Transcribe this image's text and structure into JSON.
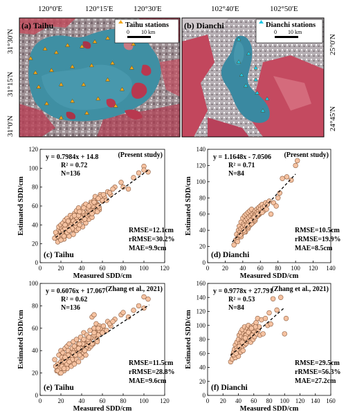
{
  "maps": [
    {
      "panel_label": "(a) Taihu",
      "legend": "Taihu stations",
      "scale_0": "0",
      "scale_1": "10 km",
      "top_ticks": [
        "120°0'E",
        "120°15'E",
        "120°30'E"
      ],
      "left_ticks": [
        "31°30'N",
        "31°15'N",
        "31°0'N"
      ],
      "station_color": "#f2a81d",
      "stations": [
        [
          0.07,
          0.34
        ],
        [
          0.16,
          0.26
        ],
        [
          0.23,
          0.29
        ],
        [
          0.3,
          0.23
        ],
        [
          0.39,
          0.24
        ],
        [
          0.47,
          0.2
        ],
        [
          0.55,
          0.17
        ],
        [
          0.65,
          0.15
        ],
        [
          0.71,
          0.22
        ],
        [
          0.1,
          0.46
        ],
        [
          0.2,
          0.44
        ],
        [
          0.33,
          0.41
        ],
        [
          0.45,
          0.4
        ],
        [
          0.58,
          0.38
        ],
        [
          0.7,
          0.42
        ],
        [
          0.12,
          0.58
        ],
        [
          0.26,
          0.56
        ],
        [
          0.4,
          0.56
        ],
        [
          0.55,
          0.52
        ],
        [
          0.64,
          0.6
        ],
        [
          0.17,
          0.72
        ],
        [
          0.33,
          0.7
        ],
        [
          0.49,
          0.68
        ],
        [
          0.6,
          0.74
        ],
        [
          0.26,
          0.84
        ],
        [
          0.42,
          0.8
        ]
      ]
    },
    {
      "panel_label": "(b) Dianchi",
      "legend": "Dianchi stations",
      "scale_0": "0",
      "scale_1": "10 km",
      "top_ticks": [
        "102°40'E",
        "102°50'E"
      ],
      "right_ticks": [
        "25°0'N",
        "24°45'N"
      ],
      "station_color": "#1ec7e6",
      "stations": [
        [
          0.4,
          0.18
        ],
        [
          0.47,
          0.3
        ],
        [
          0.4,
          0.37
        ],
        [
          0.52,
          0.42
        ],
        [
          0.42,
          0.48
        ],
        [
          0.52,
          0.52
        ],
        [
          0.45,
          0.57
        ],
        [
          0.53,
          0.63
        ],
        [
          0.6,
          0.68
        ],
        [
          0.57,
          0.78
        ]
      ]
    }
  ],
  "chart_data": [
    {
      "type": "scatter",
      "panel_label": "(c) Taihu",
      "source": "(Present study)",
      "equation": "y = 0.7984x + 14.8",
      "r2": "R² = 0.72",
      "n": "N=136",
      "rmse": "RMSE=12.1cm",
      "rrmse": "rRMSE=30.2%",
      "mae": "MAE=9.9cm",
      "xlabel": "Measured SDD/cm",
      "ylabel": "Estimated SDD/cm",
      "xlim": [
        0,
        120
      ],
      "ylim": [
        0,
        120
      ],
      "xticks": [
        "0",
        "20",
        "40",
        "60",
        "80",
        "100",
        "120"
      ],
      "yticks": [
        "0",
        "20",
        "40",
        "60",
        "80",
        "100",
        "120"
      ],
      "fit": {
        "slope": 0.7984,
        "intercept": 14.8,
        "x_range": [
          15,
          105
        ]
      },
      "x": [
        14,
        16,
        17,
        18,
        18,
        19,
        20,
        20,
        21,
        21,
        22,
        22,
        23,
        23,
        24,
        24,
        25,
        25,
        26,
        26,
        27,
        27,
        28,
        28,
        29,
        30,
        30,
        31,
        31,
        32,
        32,
        33,
        34,
        34,
        35,
        35,
        36,
        36,
        37,
        37,
        38,
        38,
        39,
        40,
        40,
        41,
        41,
        42,
        42,
        43,
        44,
        44,
        45,
        46,
        47,
        48,
        48,
        49,
        50,
        50,
        51,
        52,
        52,
        53,
        54,
        55,
        56,
        57,
        58,
        60,
        62,
        65,
        68,
        72,
        78,
        80,
        85,
        90,
        95,
        100,
        100,
        104,
        15,
        19,
        22,
        25,
        28,
        30,
        33,
        36,
        39,
        42,
        45,
        48,
        51,
        54,
        57,
        60,
        17,
        21,
        24,
        27,
        29,
        32,
        35,
        38,
        41,
        44,
        47,
        50,
        53,
        56,
        20,
        23,
        26,
        31,
        34,
        37,
        43,
        46,
        49,
        52,
        55,
        58,
        61,
        64,
        67,
        70,
        24,
        28,
        33,
        38,
        42,
        47,
        52,
        56
      ],
      "y": [
        26,
        30,
        22,
        35,
        38,
        28,
        33,
        40,
        27,
        36,
        31,
        42,
        25,
        38,
        34,
        45,
        29,
        41,
        36,
        47,
        32,
        39,
        44,
        28,
        50,
        37,
        42,
        35,
        48,
        40,
        30,
        52,
        38,
        45,
        34,
        55,
        42,
        48,
        36,
        58,
        44,
        40,
        50,
        46,
        52,
        38,
        56,
        44,
        60,
        48,
        42,
        62,
        50,
        54,
        46,
        58,
        52,
        64,
        48,
        56,
        60,
        66,
        54,
        70,
        58,
        62,
        68,
        56,
        72,
        65,
        70,
        75,
        72,
        80,
        85,
        80,
        78,
        90,
        95,
        102,
        98,
        96,
        32,
        26,
        34,
        38,
        42,
        40,
        46,
        44,
        48,
        52,
        50,
        56,
        60,
        62,
        58,
        66,
        28,
        30,
        36,
        44,
        38,
        44,
        48,
        40,
        54,
        48,
        56,
        52,
        64,
        60,
        24,
        28,
        32,
        36,
        42,
        50,
        46,
        58,
        62,
        64,
        54,
        70,
        72,
        66,
        74,
        78,
        40,
        34,
        50,
        54,
        58,
        60,
        64,
        68
      ]
    },
    {
      "type": "scatter",
      "panel_label": "(d) Dianchi",
      "source": "(Present study)",
      "equation": "y = 1.1648x - 7.0506",
      "r2": "R² = 0.71",
      "n": "N=84",
      "rmse": "RMSE=10.5cm",
      "rrmse": "rRMSE=19.9%",
      "mae": "MAE=8.5cm",
      "xlabel": "Measured SDD/cm",
      "ylabel": "Estimated SDD/cm",
      "xlim": [
        0,
        140
      ],
      "ylim": [
        0,
        140
      ],
      "xticks": [
        "0",
        "20",
        "40",
        "60",
        "80",
        "100",
        "120",
        "140"
      ],
      "yticks": [
        "0",
        "20",
        "40",
        "60",
        "80",
        "100",
        "120",
        "140"
      ],
      "fit": {
        "slope": 1.1648,
        "intercept": -7.0506,
        "x_range": [
          28,
          100
        ]
      },
      "x": [
        30,
        32,
        33,
        34,
        35,
        36,
        36,
        37,
        38,
        38,
        39,
        40,
        40,
        41,
        41,
        42,
        42,
        43,
        43,
        44,
        44,
        45,
        45,
        46,
        46,
        47,
        47,
        48,
        48,
        49,
        49,
        50,
        50,
        51,
        51,
        52,
        52,
        53,
        53,
        54,
        54,
        55,
        55,
        56,
        56,
        57,
        58,
        58,
        59,
        60,
        60,
        61,
        62,
        63,
        64,
        65,
        66,
        67,
        68,
        70,
        72,
        75,
        78,
        80,
        82,
        85,
        90,
        95,
        100,
        102,
        34,
        38,
        42,
        46,
        50,
        54,
        58,
        62,
        37,
        41,
        45,
        49,
        53,
        57
      ],
      "y": [
        22,
        28,
        35,
        30,
        40,
        33,
        45,
        38,
        42,
        50,
        36,
        44,
        55,
        40,
        48,
        46,
        58,
        38,
        52,
        44,
        60,
        48,
        54,
        42,
        62,
        50,
        56,
        46,
        64,
        52,
        58,
        48,
        66,
        54,
        60,
        50,
        56,
        62,
        58,
        52,
        64,
        60,
        56,
        66,
        62,
        58,
        64,
        68,
        60,
        70,
        66,
        62,
        72,
        68,
        64,
        70,
        74,
        66,
        72,
        76,
        60,
        74,
        70,
        80,
        86,
        104,
        106,
        102,
        120,
        126,
        26,
        32,
        38,
        44,
        48,
        54,
        60,
        62,
        34,
        40,
        46,
        52,
        56,
        60
      ]
    },
    {
      "type": "scatter",
      "panel_label": "(e) Taihu",
      "source": "(Zhang et al., 2021)",
      "equation": "y = 0.6076x + 17.067",
      "r2": "R² = 0.62",
      "n": "N=136",
      "rmse": "RMSE=11.5cm",
      "rrmse": "rRMSE=28.8%",
      "mae": "MAE=9.6cm",
      "xlabel": "Measured SDD/cm",
      "ylabel": "Estimated SDD/cm",
      "xlim": [
        0,
        120
      ],
      "ylim": [
        0,
        100
      ],
      "xticks": [
        "0",
        "20",
        "40",
        "60",
        "80",
        "100",
        "120"
      ],
      "yticks": [
        "0",
        "20",
        "40",
        "60",
        "80",
        "100"
      ],
      "fit": {
        "slope": 0.6076,
        "intercept": 17.067,
        "x_range": [
          15,
          105
        ]
      },
      "x": [
        14,
        16,
        17,
        18,
        18,
        19,
        20,
        20,
        21,
        21,
        22,
        22,
        23,
        23,
        24,
        24,
        25,
        25,
        26,
        26,
        27,
        27,
        28,
        28,
        29,
        30,
        30,
        31,
        31,
        32,
        32,
        33,
        34,
        34,
        35,
        35,
        36,
        36,
        37,
        37,
        38,
        38,
        39,
        40,
        40,
        41,
        41,
        42,
        42,
        43,
        44,
        44,
        45,
        46,
        47,
        48,
        48,
        49,
        50,
        50,
        51,
        52,
        52,
        53,
        54,
        55,
        56,
        57,
        58,
        60,
        62,
        65,
        68,
        72,
        78,
        80,
        85,
        90,
        95,
        100,
        100,
        104,
        15,
        19,
        22,
        25,
        28,
        30,
        33,
        36,
        39,
        42,
        45,
        48,
        51,
        54,
        57,
        60,
        17,
        21,
        24,
        27,
        29,
        32,
        35,
        38,
        41,
        44,
        47,
        50,
        53,
        56,
        20,
        23,
        26,
        31,
        34,
        37,
        43,
        46,
        49,
        52,
        55,
        58,
        61,
        64,
        67,
        70,
        24,
        28,
        33,
        38,
        42,
        47,
        52,
        56
      ],
      "y": [
        32,
        22,
        28,
        25,
        36,
        20,
        30,
        40,
        24,
        34,
        28,
        38,
        22,
        32,
        42,
        26,
        36,
        30,
        44,
        24,
        34,
        40,
        28,
        46,
        32,
        26,
        38,
        42,
        30,
        48,
        34,
        28,
        40,
        36,
        50,
        32,
        44,
        38,
        30,
        46,
        40,
        36,
        52,
        42,
        34,
        48,
        44,
        38,
        56,
        42,
        46,
        36,
        54,
        48,
        42,
        50,
        58,
        44,
        52,
        70,
        46,
        60,
        72,
        54,
        64,
        50,
        58,
        62,
        56,
        60,
        58,
        66,
        62,
        68,
        72,
        74,
        70,
        76,
        80,
        88,
        78,
        86,
        26,
        24,
        30,
        32,
        36,
        34,
        40,
        38,
        42,
        46,
        44,
        50,
        52,
        54,
        58,
        56,
        22,
        26,
        30,
        36,
        32,
        38,
        42,
        36,
        46,
        42,
        48,
        46,
        56,
        54,
        20,
        24,
        28,
        32,
        36,
        42,
        40,
        50,
        52,
        54,
        48,
        60,
        62,
        58,
        64,
        66,
        34,
        30,
        44,
        46,
        50,
        52,
        56,
        60
      ]
    },
    {
      "type": "scatter",
      "panel_label": "(f) Dianchi",
      "source": "(Zhang et al., 2021)",
      "equation": "y = 0.9778x + 27.791",
      "r2": "R² = 0.53",
      "n": "N=84",
      "rmse": "RMSE=29.5cm",
      "rrmse": "rRMSE=56.3%",
      "mae": "MAE=27.2cm",
      "xlabel": "Measured SDD/cm",
      "ylabel": "Estimated SDD/cm",
      "xlim": [
        0,
        160
      ],
      "ylim": [
        0,
        160
      ],
      "xticks": [
        "0",
        "20",
        "40",
        "60",
        "80",
        "100",
        "120",
        "140",
        "160"
      ],
      "yticks": [
        "0",
        "20",
        "40",
        "60",
        "80",
        "100",
        "120",
        "140",
        "160"
      ],
      "fit": {
        "slope": 0.9778,
        "intercept": 27.791,
        "x_range": [
          30,
          100
        ]
      },
      "x": [
        30,
        32,
        33,
        34,
        35,
        36,
        36,
        37,
        38,
        38,
        39,
        40,
        40,
        41,
        41,
        42,
        42,
        43,
        43,
        44,
        44,
        45,
        45,
        46,
        46,
        47,
        47,
        48,
        48,
        49,
        49,
        50,
        50,
        51,
        51,
        52,
        52,
        53,
        53,
        54,
        54,
        55,
        55,
        56,
        56,
        57,
        58,
        58,
        59,
        60,
        60,
        61,
        62,
        63,
        64,
        65,
        66,
        67,
        68,
        70,
        72,
        75,
        78,
        80,
        82,
        85,
        90,
        95,
        100,
        102,
        34,
        38,
        42,
        46,
        50,
        54,
        58,
        62,
        37,
        41,
        45,
        49,
        53,
        57
      ],
      "y": [
        48,
        52,
        58,
        62,
        66,
        54,
        72,
        60,
        76,
        68,
        64,
        80,
        56,
        70,
        86,
        66,
        74,
        90,
        62,
        78,
        84,
        70,
        94,
        76,
        64,
        82,
        88,
        72,
        98,
        80,
        86,
        74,
        92,
        84,
        78,
        96,
        88,
        80,
        100,
        86,
        92,
        82,
        94,
        88,
        76,
        98,
        90,
        86,
        80,
        100,
        92,
        84,
        96,
        104,
        88,
        110,
        94,
        98,
        86,
        108,
        88,
        110,
        100,
        118,
        102,
        138,
        122,
        140,
        88,
        110,
        58,
        64,
        74,
        78,
        86,
        92,
        96,
        98,
        60,
        70,
        76,
        82,
        90,
        96
      ]
    }
  ]
}
